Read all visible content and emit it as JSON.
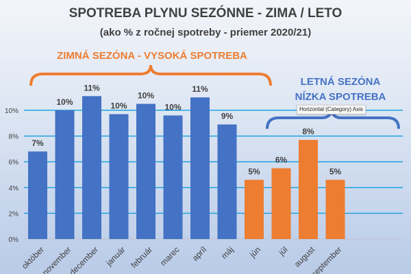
{
  "chart_data": {
    "type": "bar",
    "title": "SPOTREBA PLYNU SEZÓNNE - ZIMA / LETO",
    "subtitle": "(ako % z ročnej spotreby - priemer 2020/21)",
    "categories": [
      "október",
      "november",
      "december",
      "január",
      "február",
      "marec",
      "apríl",
      "máj",
      "jún",
      "júl",
      "august",
      "september"
    ],
    "values": [
      6.8,
      10.0,
      11.1,
      9.7,
      10.5,
      9.6,
      11.0,
      8.9,
      4.6,
      5.5,
      7.7,
      4.6
    ],
    "data_labels": [
      "7%",
      "10%",
      "11%",
      "10%",
      "10%",
      "10%",
      "11%",
      "9%",
      "5%",
      "6%",
      "8%",
      "5%"
    ],
    "bar_colors": [
      "#4472c4",
      "#4472c4",
      "#4472c4",
      "#4472c4",
      "#4472c4",
      "#4472c4",
      "#4472c4",
      "#4472c4",
      "#ed7d31",
      "#ed7d31",
      "#ed7d31",
      "#ed7d31"
    ],
    "yticks": [
      "0%",
      "2%",
      "4%",
      "6%",
      "8%",
      "10%"
    ],
    "ylim": [
      0,
      12
    ],
    "grid": true,
    "annotations": {
      "winter": {
        "text": "ZIMNÁ SEZÓNA - VYSOKÁ SPOTREBA",
        "color": "#ed7d31"
      },
      "summer": {
        "line1": "LETNÁ SEZÓNA",
        "line2": "NÍZKA SPOTREBA",
        "color": "#4472c4"
      }
    }
  },
  "tooltip": "Horizontal (Category) Axis"
}
